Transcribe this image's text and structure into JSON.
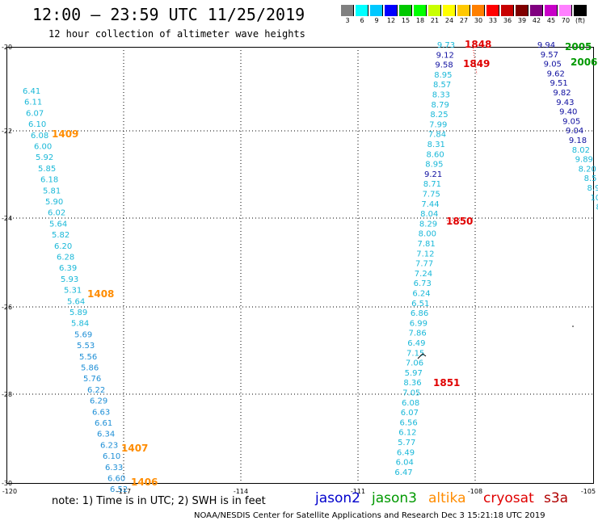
{
  "title": "12:00 – 23:59 UTC 11/25/2019",
  "subtitle": "12 hour collection of altimeter wave heights",
  "colorbar": {
    "colors": [
      "#808080",
      "#00ffff",
      "#00c8ff",
      "#0000ff",
      "#00c800",
      "#00ff00",
      "#c8ff00",
      "#ffff00",
      "#ffc800",
      "#ff8000",
      "#ff0000",
      "#c80000",
      "#800000",
      "#800080",
      "#c800c8",
      "#ff80ff",
      "#000000"
    ],
    "labels": [
      "3",
      "6",
      "9",
      "12",
      "15",
      "18",
      "21",
      "24",
      "27",
      "30",
      "33",
      "36",
      "39",
      "42",
      "45",
      "70",
      "(ft)"
    ]
  },
  "axes": {
    "lat_labels": [
      "-20",
      "-22",
      "-24",
      "-26",
      "-28",
      "-30"
    ],
    "lon_labels": [
      "-120",
      "-117",
      "-114",
      "-111",
      "-108",
      "-105"
    ]
  },
  "note": "note:  1) Time is in UTC;  2) SWH is in feet",
  "satellites": [
    {
      "name": "jason2",
      "color": "#0000cc"
    },
    {
      "name": "jason3",
      "color": "#009900"
    },
    {
      "name": "altika",
      "color": "#ff8c00"
    },
    {
      "name": "cryosat",
      "color": "#e00000"
    },
    {
      "name": "s3a",
      "color": "#b00000"
    }
  ],
  "footer": "NOAA/NESDIS Center for Satellite Applications and Research    Dec  3 15:21:18 UTC 2019",
  "tracks": [
    {
      "id": "left-track",
      "values": [
        "6.41",
        "6.11",
        "6.07",
        "6.10",
        "6.08",
        "6.00",
        "5.92",
        "5.85",
        "6.18",
        "5.81",
        "5.90",
        "6.02",
        "5.64",
        "5.82",
        "6.20",
        "6.28",
        "6.39",
        "5.93",
        "5.31",
        "5.64",
        "5.89",
        "5.84",
        "5.69",
        "5.53",
        "5.56",
        "5.86",
        "5.76",
        "6.22",
        "6.29",
        "6.63",
        "6.61",
        "6.34",
        "6.23",
        "6.10",
        "6.33",
        "6.60",
        "6.52"
      ]
    },
    {
      "id": "middle-track",
      "values": [
        "9.73",
        "9.12",
        "9.58",
        "8.95",
        "8.57",
        "8.33",
        "8.79",
        "8.25",
        "7.99",
        "7.84",
        "8.31",
        "8.60",
        "8.95",
        "9.21",
        "8.71",
        "7.75",
        "7.44",
        "8.04",
        "8.29",
        "8.00",
        "7.81",
        "7.12",
        "7.77",
        "7.24",
        "6.73",
        "6.24",
        "6.51",
        "6.86",
        "6.99",
        "7.86",
        "6.49",
        "7.15",
        "7.06",
        "5.97",
        "8.36",
        "7.05",
        "6.08",
        "6.07",
        "6.56",
        "6.12",
        "5.77",
        "6.49",
        "6.04",
        "6.47"
      ]
    },
    {
      "id": "right-track",
      "values": [
        "9.94",
        "9.57",
        "9.05",
        "9.62",
        "9.51",
        "9.82",
        "9.43",
        "9.40",
        "9.05",
        "9.04",
        "9.18",
        "8.02",
        "9.89",
        "8.20",
        "8.5",
        "8.9",
        "10.",
        "8."
      ]
    }
  ],
  "time_labels": [
    {
      "text": "1409",
      "color": "#ff8c00"
    },
    {
      "text": "1408",
      "color": "#ff8c00"
    },
    {
      "text": "1407",
      "color": "#ff8c00"
    },
    {
      "text": "1406",
      "color": "#ff8c00"
    },
    {
      "text": "1848",
      "color": "#e00000"
    },
    {
      "text": "1849",
      "color": "#e00000"
    },
    {
      "text": "1850",
      "color": "#e00000"
    },
    {
      "text": "1851",
      "color": "#e00000"
    },
    {
      "text": "2005",
      "color": "#009900"
    },
    {
      "text": "2006",
      "color": "#009900"
    }
  ]
}
